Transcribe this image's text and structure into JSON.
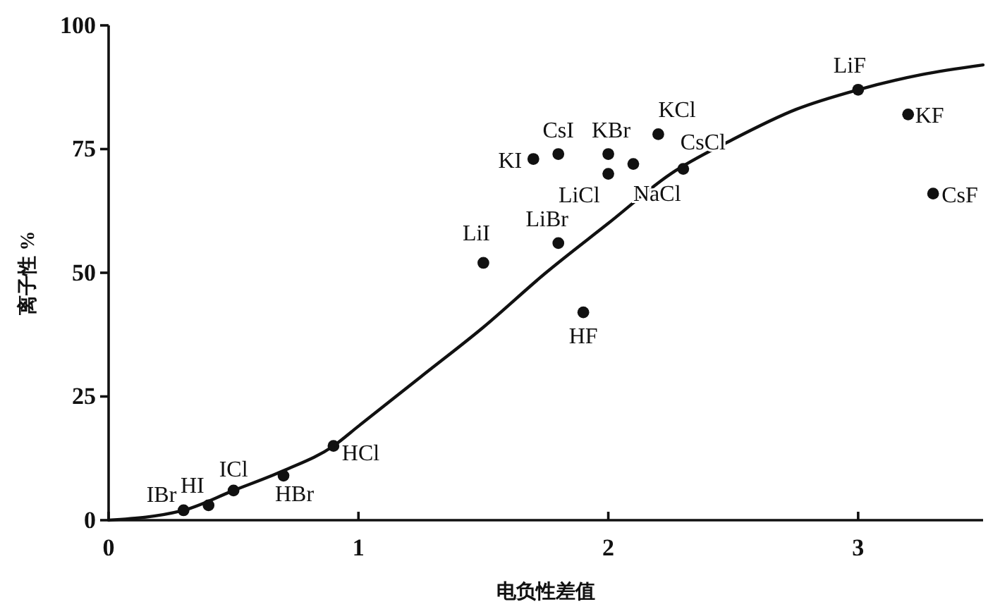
{
  "chart_data": {
    "type": "scatter",
    "xlabel": "电负性差值",
    "ylabel": "离子性 %",
    "xlim": [
      0,
      3.5
    ],
    "ylim": [
      0,
      100
    ],
    "xticks": [
      0,
      1,
      2,
      3
    ],
    "yticks": [
      0,
      25,
      50,
      75,
      100
    ],
    "grid": false,
    "series": [
      {
        "marker": "circle",
        "color": "#111111",
        "x": [
          0.3,
          0.4,
          0.5,
          0.7,
          0.9,
          1.5,
          1.7,
          1.8,
          2.0,
          2.0,
          2.1,
          2.2,
          2.3,
          1.8,
          1.9,
          3.0,
          3.2,
          3.3
        ],
        "values": [
          2,
          3,
          6,
          9,
          15,
          52,
          73,
          74,
          74,
          70,
          72,
          78,
          71,
          56,
          42,
          87,
          82,
          66
        ]
      },
      {
        "type": "line",
        "color": "#111111",
        "x": [
          0,
          0.3,
          0.5,
          0.7,
          0.9,
          1.0,
          1.25,
          1.5,
          1.75,
          2.0,
          2.25,
          2.5,
          2.75,
          3.0,
          3.25,
          3.5
        ],
        "values": [
          0,
          2,
          6,
          10,
          15,
          19,
          29,
          39,
          50,
          60,
          70,
          77,
          83,
          87,
          90,
          92
        ]
      }
    ],
    "annotations": [
      {
        "text": "IBr",
        "x": 0.3,
        "y": 2
      },
      {
        "text": "HI",
        "x": 0.4,
        "y": 3
      },
      {
        "text": "ICl",
        "x": 0.5,
        "y": 6
      },
      {
        "text": "HBr",
        "x": 0.7,
        "y": 9
      },
      {
        "text": "HCl",
        "x": 0.9,
        "y": 15
      },
      {
        "text": "LiI",
        "x": 1.5,
        "y": 52
      },
      {
        "text": "KI",
        "x": 1.7,
        "y": 73
      },
      {
        "text": "CsI",
        "x": 1.8,
        "y": 74
      },
      {
        "text": "KBr",
        "x": 2.0,
        "y": 74
      },
      {
        "text": "LiCl",
        "x": 2.0,
        "y": 70
      },
      {
        "text": "NaCl",
        "x": 2.1,
        "y": 72
      },
      {
        "text": "KCl",
        "x": 2.2,
        "y": 78
      },
      {
        "text": "CsCl",
        "x": 2.3,
        "y": 71
      },
      {
        "text": "LiBr",
        "x": 1.8,
        "y": 56
      },
      {
        "text": "HF",
        "x": 1.9,
        "y": 42
      },
      {
        "text": "LiF",
        "x": 3.0,
        "y": 87
      },
      {
        "text": "KF",
        "x": 3.2,
        "y": 82
      },
      {
        "text": "CsF",
        "x": 3.3,
        "y": 66
      }
    ]
  }
}
